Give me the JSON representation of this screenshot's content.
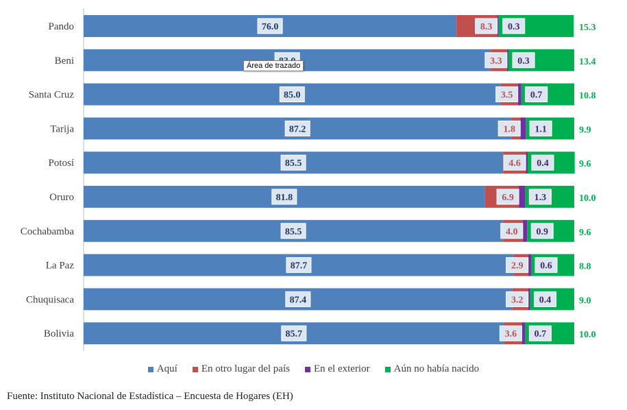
{
  "chart_data": {
    "type": "bar",
    "orientation": "horizontal",
    "stacked": true,
    "categories": [
      "Pando",
      "Beni",
      "Santa Cruz",
      "Tarija",
      "Potosí",
      "Oruro",
      "Cochabamba",
      "La Paz",
      "Chuquisaca",
      "Bolivia"
    ],
    "series": [
      {
        "name": "Aquí",
        "color": "#4F81BD",
        "values": [
          76.0,
          83.0,
          85.0,
          87.2,
          85.5,
          81.8,
          85.5,
          87.7,
          87.4,
          85.7
        ],
        "labels": [
          "76.0",
          "83.0",
          "85.0",
          "87.2",
          "85.5",
          "81.8",
          "85.5",
          "87.7",
          "87.4",
          "85.7"
        ]
      },
      {
        "name": "En otro lugar del país",
        "color": "#C0504D",
        "values": [
          8.3,
          3.3,
          3.5,
          1.8,
          4.6,
          6.9,
          4.0,
          2.9,
          3.2,
          3.6
        ],
        "labels": [
          "8.3",
          "3.3",
          "3.5",
          "1.8",
          "4.6",
          "6.9",
          "4.0",
          "2.9",
          "3.2",
          "3.6"
        ]
      },
      {
        "name": "En el exterior",
        "color": "#7030A0",
        "values": [
          0.3,
          0.3,
          0.7,
          1.1,
          0.4,
          1.3,
          0.9,
          0.6,
          0.4,
          0.7
        ],
        "labels": [
          "0.3",
          "0.3",
          "0.7",
          "1.1",
          "0.4",
          "1.3",
          "0.9",
          "0.6",
          "0.4",
          "0.7"
        ]
      },
      {
        "name": "Aún no había nacido",
        "color": "#00B050",
        "values": [
          15.3,
          13.4,
          10.8,
          9.9,
          9.6,
          10.0,
          9.6,
          8.8,
          9.0,
          10.0
        ],
        "labels": [
          "15.3",
          "13.4",
          "10.8",
          "9.9",
          "9.6",
          "10.0",
          "9.6",
          "8.8",
          "9.0",
          "10.0"
        ]
      }
    ],
    "xlim": [
      0,
      100
    ],
    "legend_position": "bottom"
  },
  "tooltip_text": "Área de trazado",
  "source_text": "Fuente: Instituto Nacional de Estadística – Encuesta de Hogares (EH)",
  "colors": {
    "label_box_fill": "#DCE6F1",
    "label_box_stroke": "#FFFFFF",
    "blue_label_text": "#1F3864",
    "red_label_text": "#C0504D",
    "purple_label_text": "#3F2A64",
    "green_label_text": "#00B050"
  }
}
